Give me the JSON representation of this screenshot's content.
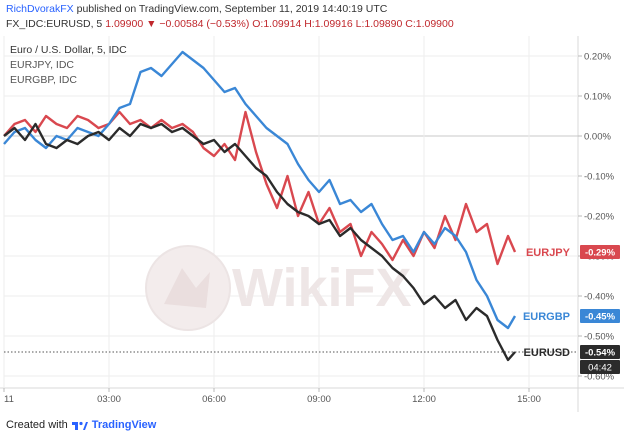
{
  "header": {
    "author": "RichDvorakFX",
    "published": "published on TradingView.com, September 11, 2019 14:40:19 UTC"
  },
  "ohlc": {
    "symbol": "FX_IDC:EURUSD, 5",
    "last": "1.09900",
    "arrow": "▼",
    "change": "−0.00584 (−0.53%)",
    "open": "O:1.09914",
    "high": "H:1.09916",
    "low": "L:1.09890",
    "close": "C:1.09900"
  },
  "legend": [
    "Euro / U.S. Dollar, 5, IDC",
    "EURJPY, IDC",
    "EURGBP, IDC"
  ],
  "watermark": "WikiFX",
  "footer": {
    "created": "Created with",
    "brand": "TradingView"
  },
  "colors": {
    "eurusd": "#2b2b2b",
    "eurjpy": "#d9484f",
    "eurgbp": "#3a87d6",
    "accent": "#2962ff"
  },
  "chart_data": {
    "type": "line",
    "x_ticks": [
      "11",
      "03:00",
      "06:00",
      "09:00",
      "12:00",
      "15:00"
    ],
    "x_tick_pos": [
      0,
      3,
      6,
      9,
      12,
      15
    ],
    "xlim": [
      0,
      16.4
    ],
    "y_ticks": [
      "0.20%",
      "0.10%",
      "0.00%",
      "-0.10%",
      "-0.20%",
      "-0.30%",
      "-0.40%",
      "-0.50%",
      "-0.60%"
    ],
    "y_tick_values": [
      0.2,
      0.1,
      0,
      -0.1,
      -0.2,
      -0.3,
      -0.4,
      -0.5,
      -0.6
    ],
    "ylim": [
      -0.63,
      0.25
    ],
    "series": [
      {
        "name": "EURUSD",
        "key": "eurusd",
        "label": "-0.54%",
        "x": [
          0,
          0.3,
          0.6,
          0.9,
          1.2,
          1.5,
          1.8,
          2.1,
          2.4,
          2.7,
          3.0,
          3.3,
          3.6,
          3.9,
          4.2,
          4.5,
          4.8,
          5.1,
          5.4,
          5.7,
          6.0,
          6.3,
          6.6,
          6.9,
          7.2,
          7.5,
          7.8,
          8.1,
          8.4,
          8.7,
          9.0,
          9.3,
          9.6,
          9.9,
          10.2,
          10.5,
          10.8,
          11.1,
          11.4,
          11.7,
          12.0,
          12.3,
          12.6,
          12.9,
          13.2,
          13.5,
          13.8,
          14.1,
          14.4,
          14.6
        ],
        "y": [
          0.0,
          0.02,
          -0.01,
          0.03,
          -0.02,
          -0.03,
          -0.01,
          -0.02,
          0.0,
          0.01,
          -0.01,
          0.02,
          0.0,
          0.03,
          0.02,
          0.03,
          0.01,
          0.02,
          0.0,
          -0.02,
          -0.01,
          -0.04,
          -0.02,
          -0.05,
          -0.08,
          -0.1,
          -0.14,
          -0.17,
          -0.19,
          -0.2,
          -0.22,
          -0.21,
          -0.25,
          -0.23,
          -0.26,
          -0.28,
          -0.3,
          -0.33,
          -0.35,
          -0.38,
          -0.42,
          -0.4,
          -0.43,
          -0.41,
          -0.46,
          -0.43,
          -0.45,
          -0.51,
          -0.56,
          -0.54
        ]
      },
      {
        "name": "EURJPY",
        "key": "eurjpy",
        "label": "-0.29%",
        "x": [
          0,
          0.3,
          0.6,
          0.9,
          1.2,
          1.5,
          1.8,
          2.1,
          2.4,
          2.7,
          3.0,
          3.3,
          3.6,
          3.9,
          4.2,
          4.5,
          4.8,
          5.1,
          5.4,
          5.7,
          6.0,
          6.3,
          6.6,
          6.9,
          7.2,
          7.5,
          7.8,
          8.1,
          8.4,
          8.7,
          9.0,
          9.3,
          9.6,
          9.9,
          10.2,
          10.5,
          10.8,
          11.1,
          11.4,
          11.7,
          12.0,
          12.3,
          12.6,
          12.9,
          13.2,
          13.5,
          13.8,
          14.1,
          14.4,
          14.6
        ],
        "y": [
          0.0,
          0.03,
          0.04,
          0.01,
          0.05,
          0.03,
          0.02,
          0.05,
          0.04,
          0.02,
          0.03,
          0.06,
          0.03,
          0.04,
          0.02,
          0.04,
          0.02,
          0.03,
          0.01,
          -0.03,
          -0.05,
          -0.02,
          -0.06,
          0.06,
          -0.04,
          -0.12,
          -0.18,
          -0.1,
          -0.2,
          -0.14,
          -0.22,
          -0.18,
          -0.24,
          -0.22,
          -0.3,
          -0.24,
          -0.27,
          -0.31,
          -0.26,
          -0.3,
          -0.24,
          -0.28,
          -0.2,
          -0.26,
          -0.17,
          -0.24,
          -0.22,
          -0.32,
          -0.25,
          -0.29
        ]
      },
      {
        "name": "EURGBP",
        "key": "eurgbp",
        "label": "-0.45%",
        "x": [
          0,
          0.3,
          0.6,
          0.9,
          1.2,
          1.5,
          1.8,
          2.1,
          2.4,
          2.7,
          3.0,
          3.3,
          3.6,
          3.9,
          4.2,
          4.5,
          4.8,
          5.1,
          5.4,
          5.7,
          6.0,
          6.3,
          6.6,
          6.9,
          7.2,
          7.5,
          7.8,
          8.1,
          8.4,
          8.7,
          9.0,
          9.3,
          9.6,
          9.9,
          10.2,
          10.5,
          10.8,
          11.1,
          11.4,
          11.7,
          12.0,
          12.3,
          12.6,
          12.9,
          13.2,
          13.5,
          13.8,
          14.1,
          14.4,
          14.6
        ],
        "y": [
          -0.02,
          0.01,
          0.02,
          -0.01,
          -0.03,
          0.0,
          -0.01,
          0.02,
          0.01,
          0.0,
          0.03,
          0.07,
          0.08,
          0.16,
          0.17,
          0.15,
          0.18,
          0.21,
          0.19,
          0.17,
          0.14,
          0.11,
          0.12,
          0.08,
          0.05,
          0.02,
          0.0,
          -0.02,
          -0.07,
          -0.11,
          -0.14,
          -0.11,
          -0.17,
          -0.16,
          -0.19,
          -0.17,
          -0.22,
          -0.26,
          -0.25,
          -0.29,
          -0.24,
          -0.27,
          -0.23,
          -0.25,
          -0.29,
          -0.36,
          -0.4,
          -0.46,
          -0.48,
          -0.45
        ]
      }
    ],
    "current_line_value": -0.54,
    "current_time_label": "04:42"
  }
}
